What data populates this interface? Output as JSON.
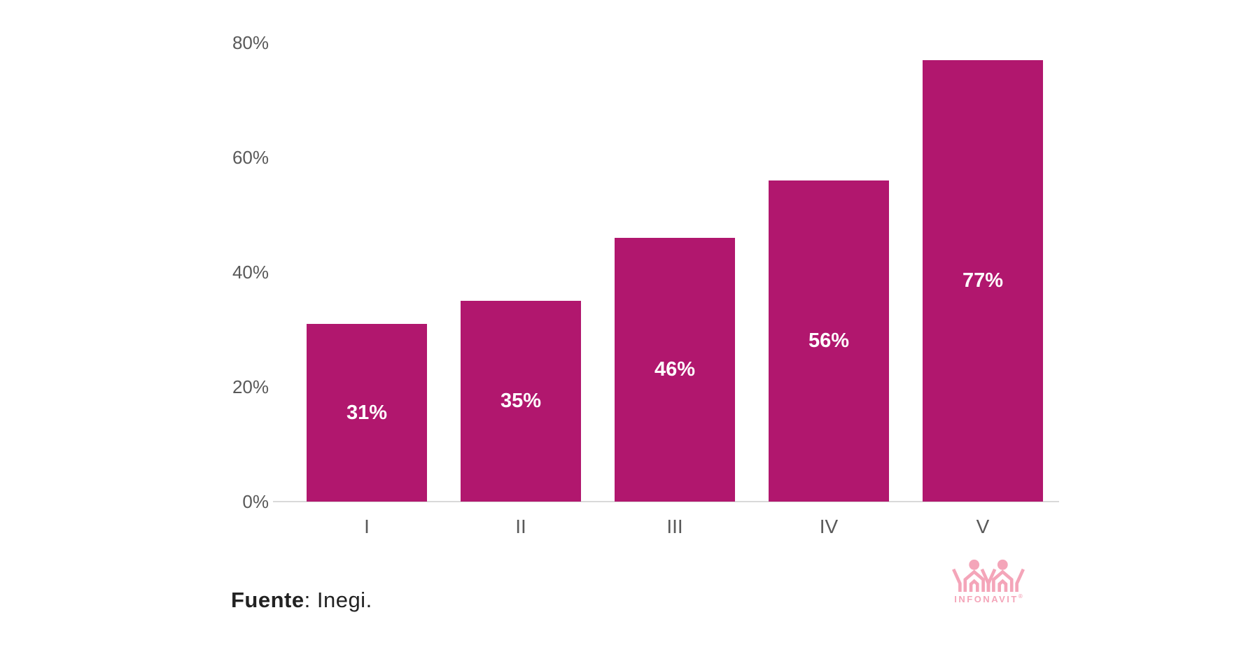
{
  "chart_data": {
    "type": "bar",
    "title": "",
    "xlabel": "",
    "ylabel": "",
    "categories": [
      "I",
      "II",
      "III",
      "IV",
      "V"
    ],
    "values": [
      31,
      35,
      46,
      56,
      77
    ],
    "value_labels": [
      "31%",
      "35%",
      "46%",
      "56%",
      "77%"
    ],
    "y_ticks": [
      {
        "value": 0,
        "label": "0%"
      },
      {
        "value": 20,
        "label": "20%"
      },
      {
        "value": 40,
        "label": "40%"
      },
      {
        "value": 60,
        "label": "60%"
      },
      {
        "value": 80,
        "label": "80%"
      }
    ],
    "ylim": [
      0,
      80
    ],
    "grid": false,
    "legend": null,
    "bar_color": "#B1176E",
    "value_label_color": "#FFFFFF",
    "axis_text_color": "#595959",
    "axis_line_color": "#D9D9D9"
  },
  "footer": {
    "source_bold": "Fuente",
    "source_rest": ": Inegi."
  },
  "logo": {
    "name": "INFONAVIT",
    "trademark": "®",
    "color": "#F4A5B9"
  }
}
